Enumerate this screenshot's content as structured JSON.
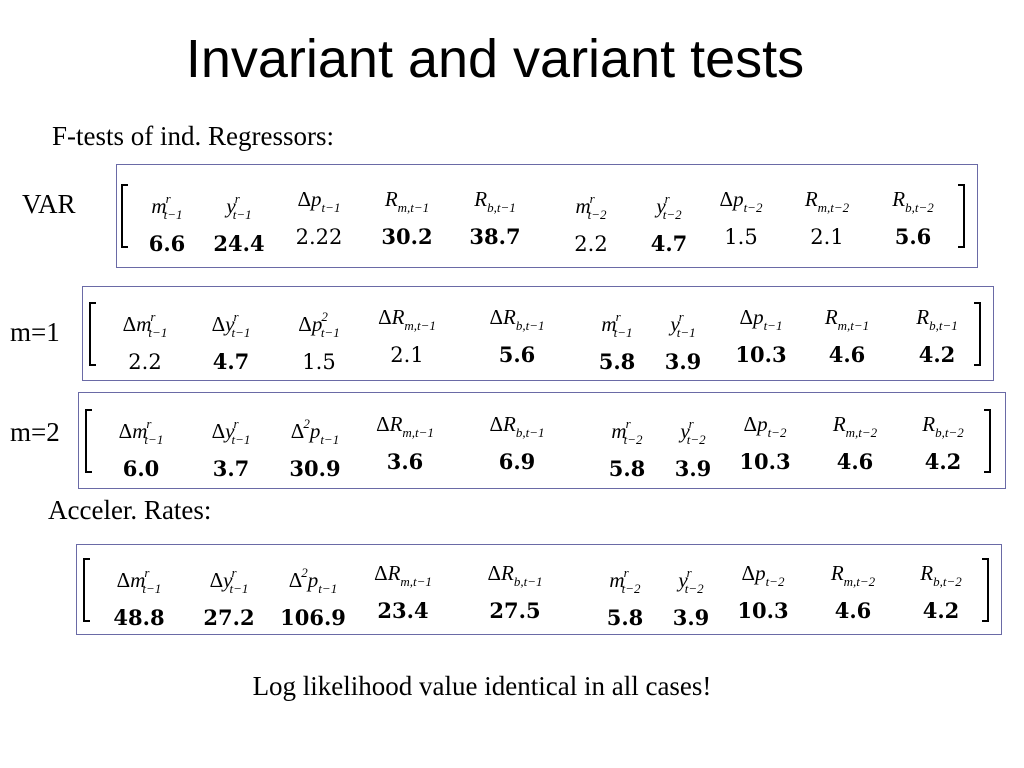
{
  "slide": {
    "title": "Invariant and variant tests",
    "subtitle": "F-tests of ind. Regressors:",
    "accel_heading": "Acceler. Rates:",
    "footnote": "Log likelihood value identical in all cases!"
  },
  "accent_color": "#6a6aa6",
  "matrices": [
    {
      "label": "VAR",
      "entries": [
        {
          "var": "m^r_t−1",
          "value": "6.6",
          "bold": true
        },
        {
          "var": "y^r_t−1",
          "value": "24.4",
          "bold": true
        },
        {
          "var": "Δp_t−1",
          "value": "2.22",
          "bold": false
        },
        {
          "var": "R_m,t−1",
          "value": "30.2",
          "bold": true
        },
        {
          "var": "R_b,t−1",
          "value": "38.7",
          "bold": true
        },
        {
          "var": "m^r_t−2",
          "value": "2.2",
          "bold": false
        },
        {
          "var": "y^r_t−2",
          "value": "4.7",
          "bold": true
        },
        {
          "var": "Δp_t−2",
          "value": "1.5",
          "bold": false
        },
        {
          "var": "R_m,t−2",
          "value": "2.1",
          "bold": false
        },
        {
          "var": "R_b,t−2",
          "value": "5.6",
          "bold": true
        }
      ]
    },
    {
      "label": "m=1",
      "entries": [
        {
          "var": "Δm^r_t−1",
          "value": "2.2",
          "bold": false
        },
        {
          "var": "Δy^r_t−1",
          "value": "4.7",
          "bold": true
        },
        {
          "var": "Δp^2_t−1",
          "value": "1.5",
          "bold": false
        },
        {
          "var": "ΔR_m,t−1",
          "value": "2.1",
          "bold": false
        },
        {
          "var": "ΔR_b,t−1",
          "value": "5.6",
          "bold": true
        },
        {
          "var": "m^r_t−1",
          "value": "5.8",
          "bold": true
        },
        {
          "var": "y^r_t−1",
          "value": "3.9",
          "bold": true
        },
        {
          "var": "Δp_t−1",
          "value": "10.3",
          "bold": true
        },
        {
          "var": "R_m,t−1",
          "value": "4.6",
          "bold": true
        },
        {
          "var": "R_b,t−1",
          "value": "4.2",
          "bold": true
        }
      ]
    },
    {
      "label": "m=2",
      "entries": [
        {
          "var": "Δm^r_t−1",
          "value": "6.0",
          "bold": true
        },
        {
          "var": "Δy^r_t−1",
          "value": "3.7",
          "bold": true
        },
        {
          "var": "Δ^2p_t−1",
          "value": "30.9",
          "bold": true
        },
        {
          "var": "ΔR_m,t−1",
          "value": "3.6",
          "bold": true
        },
        {
          "var": "ΔR_b,t−1",
          "value": "6.9",
          "bold": true
        },
        {
          "var": "m^r_t−2",
          "value": "5.8",
          "bold": true
        },
        {
          "var": "y^r_t−2",
          "value": "3.9",
          "bold": true
        },
        {
          "var": "Δp_t−2",
          "value": "10.3",
          "bold": true
        },
        {
          "var": "R_m,t−2",
          "value": "4.6",
          "bold": true
        },
        {
          "var": "R_b,t−2",
          "value": "4.2",
          "bold": true
        }
      ]
    },
    {
      "label": "",
      "entries": [
        {
          "var": "Δm^r_t−1",
          "value": "48.8",
          "bold": true
        },
        {
          "var": "Δy^r_t−1",
          "value": "27.2",
          "bold": true
        },
        {
          "var": "Δ^2p_t−1",
          "value": "106.9",
          "bold": true
        },
        {
          "var": "ΔR_m,t−1",
          "value": "23.4",
          "bold": true
        },
        {
          "var": "ΔR_b,t−1",
          "value": "27.5",
          "bold": true
        },
        {
          "var": "m^r_t−2",
          "value": "5.8",
          "bold": true
        },
        {
          "var": "y^r_t−2",
          "value": "3.9",
          "bold": true
        },
        {
          "var": "Δp_t−2",
          "value": "10.3",
          "bold": true
        },
        {
          "var": "R_m,t−2",
          "value": "4.6",
          "bold": true
        },
        {
          "var": "R_b,t−2",
          "value": "4.2",
          "bold": true
        }
      ]
    }
  ]
}
